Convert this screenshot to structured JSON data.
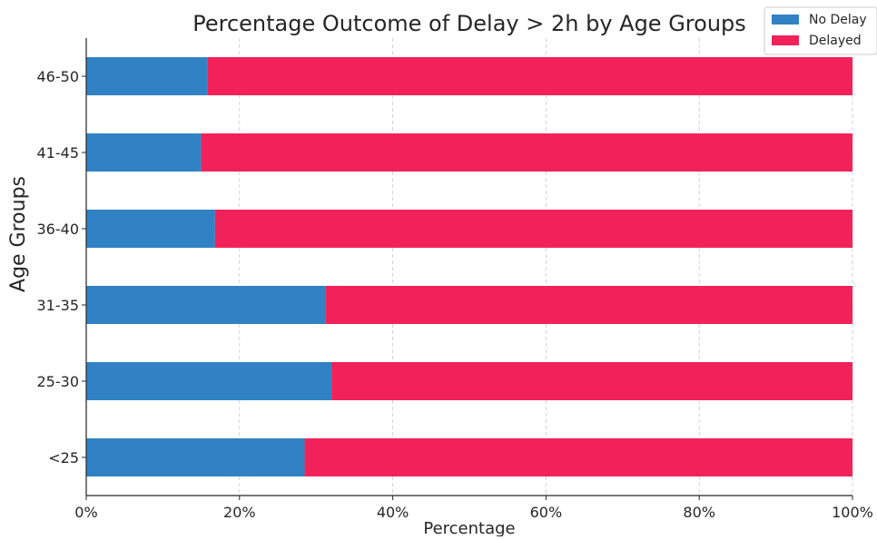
{
  "chart_data": {
    "type": "bar",
    "orientation": "horizontal",
    "stacked": true,
    "title": "Percentage Outcome of Delay > 2h by Age Groups",
    "xlabel": "Percentage",
    "ylabel": "Age Groups",
    "categories": [
      "<25",
      "25-30",
      "31-35",
      "36-40",
      "41-45",
      "46-50"
    ],
    "series": [
      {
        "name": "No Delay",
        "color": "#3182c4",
        "values": [
          28.5,
          32.0,
          31.2,
          16.8,
          15.0,
          15.8
        ]
      },
      {
        "name": "Delayed",
        "color": "#f1225a",
        "values": [
          71.5,
          68.0,
          68.8,
          83.2,
          85.0,
          84.2
        ]
      }
    ],
    "xlim": [
      0,
      100
    ],
    "xticks": [
      0,
      20,
      40,
      60,
      80,
      100
    ],
    "xtick_labels": [
      "0%",
      "20%",
      "40%",
      "60%",
      "80%",
      "100%"
    ],
    "grid": true,
    "legend_position": "top-right"
  }
}
